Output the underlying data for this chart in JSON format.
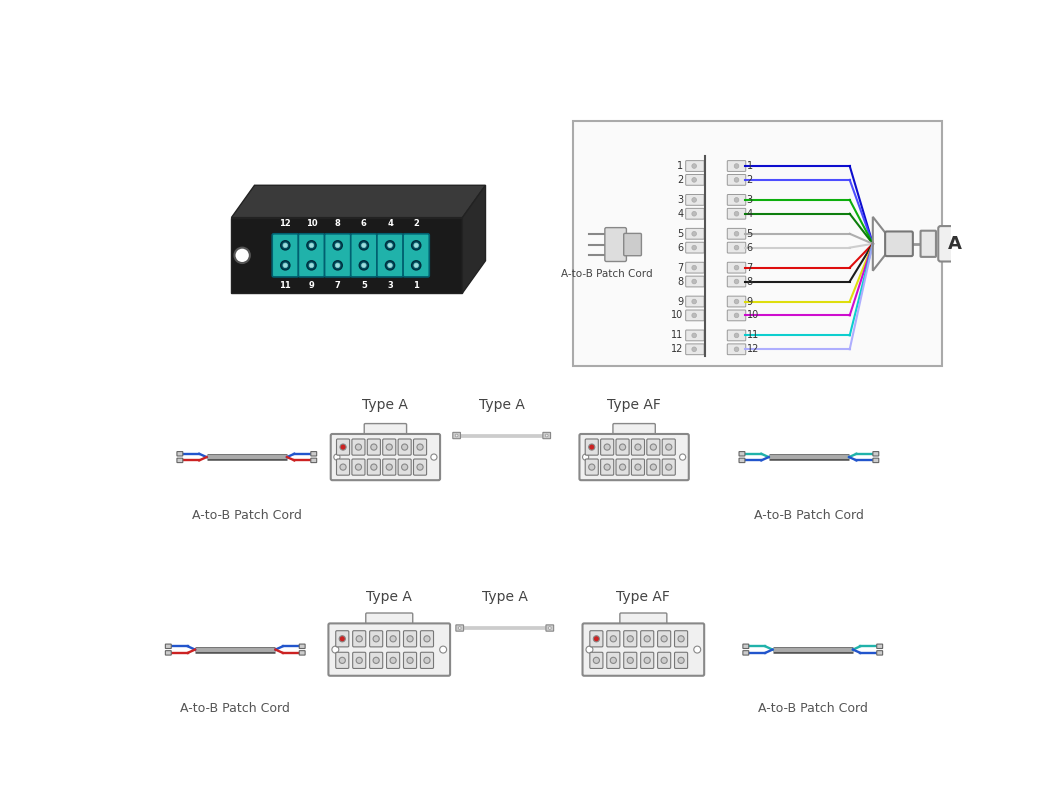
{
  "bg_color": "#ffffff",
  "fiber_colors_12": [
    "#0000cc",
    "#4444ff",
    "#00aa00",
    "#007700",
    "#aaaaaa",
    "#cccccc",
    "#dd0000",
    "#111111",
    "#dddd00",
    "#cc00cc",
    "#00cccc",
    "#aaaaff"
  ],
  "label_patch_cord": "A-to-B Patch Cord",
  "label_type_a": "Type A",
  "label_type_af": "Type AF",
  "label_a": "A",
  "teal": "#20b2aa",
  "blue": "#2255cc",
  "red_port": "#cc2222",
  "gray_port": "#cccccc",
  "cassette_body": "#f0f0f0",
  "cassette_edge": "#888888"
}
